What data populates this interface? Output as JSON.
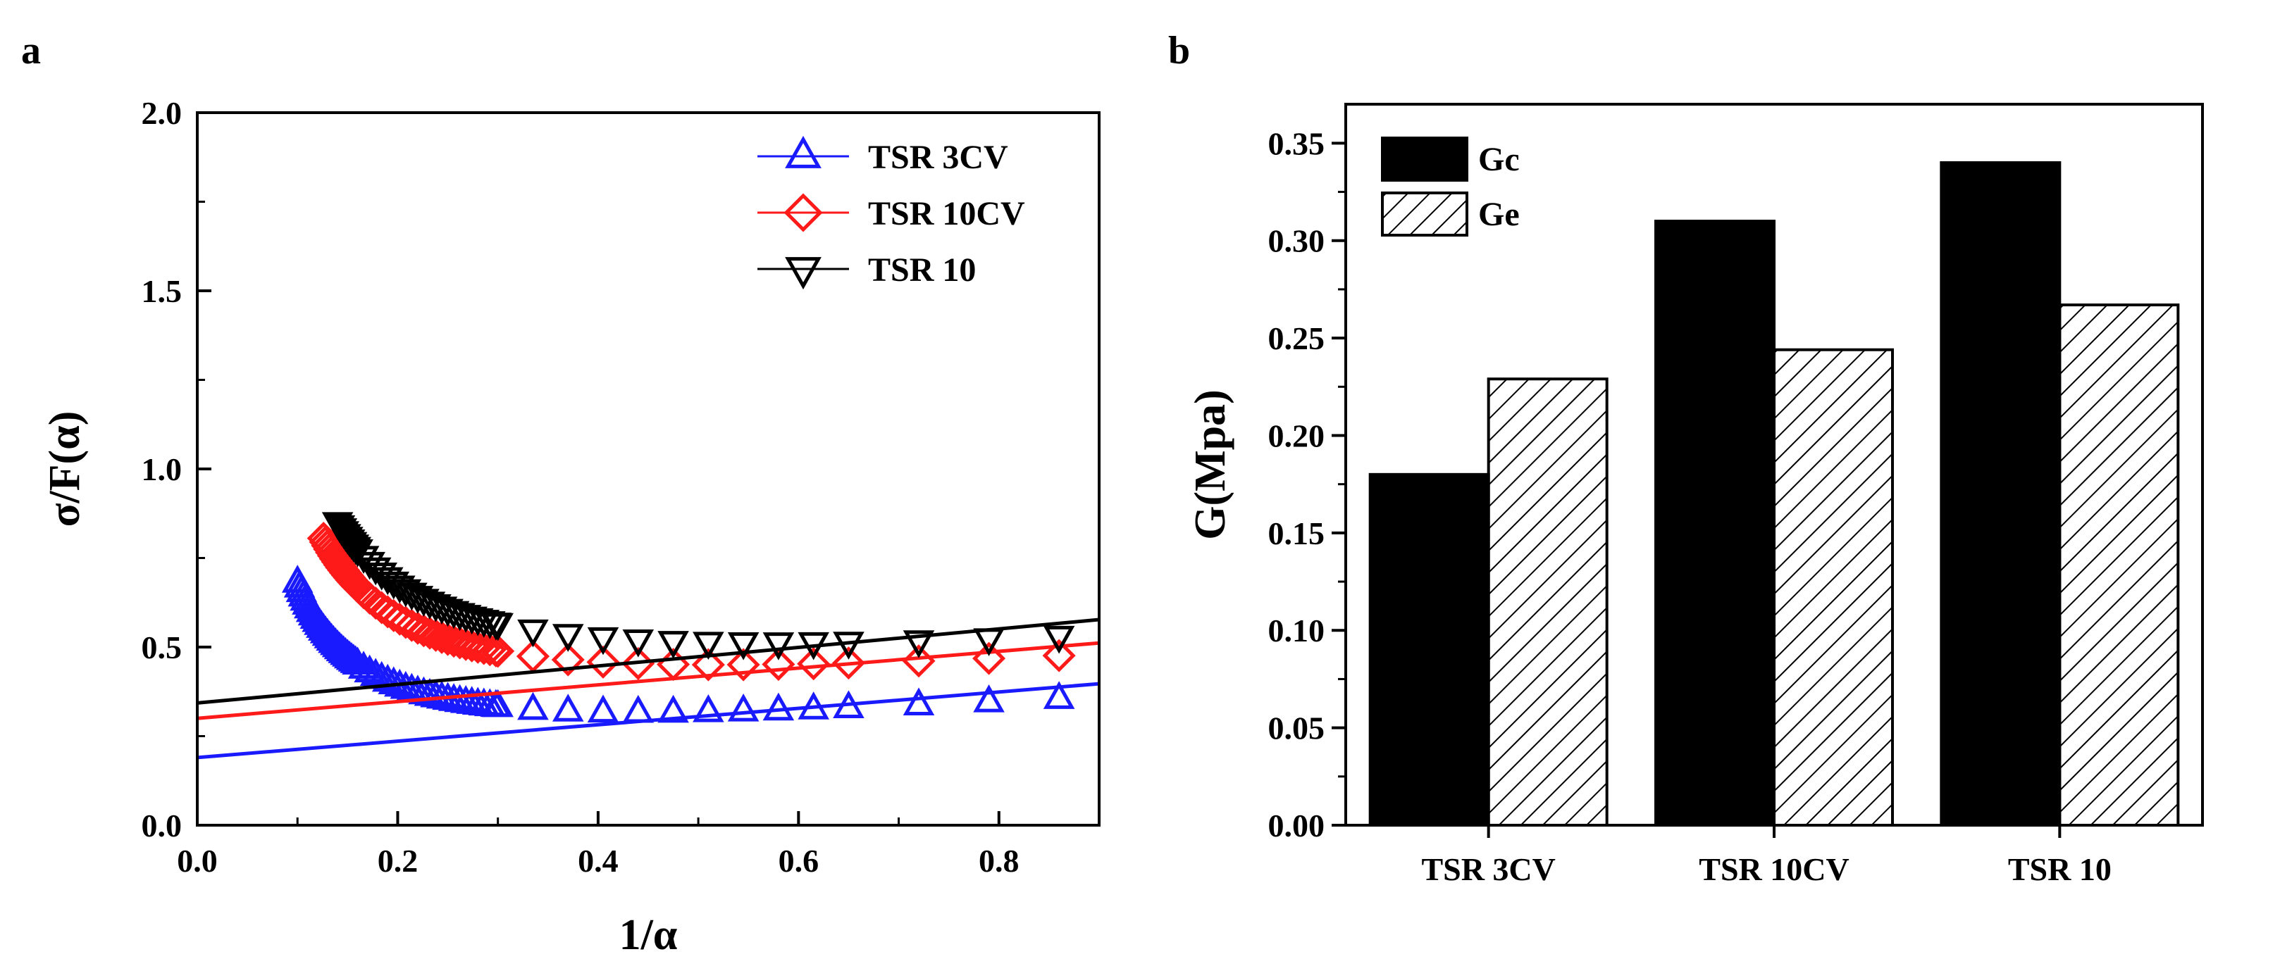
{
  "chart_data": [
    {
      "panel_label": "a",
      "type": "scatter",
      "xlabel": "1/α",
      "ylabel": "σ/F(α)",
      "xlim": [
        0,
        0.9
      ],
      "ylim": [
        0,
        2.0
      ],
      "xticks": [
        "0.0",
        "0.2",
        "0.4",
        "0.6",
        "0.8"
      ],
      "yticks": [
        "0.0",
        "0.5",
        "1.0",
        "1.5",
        "2.0"
      ],
      "legend_position": "top-right",
      "series": [
        {
          "name": "TSR 3CV",
          "color": "#1a1aff",
          "marker": "triangle-up",
          "a": 0.19,
          "b": 0.015,
          "c": 1.5,
          "fit": [
            0.19,
            0.23
          ],
          "x_min": 0.1
        },
        {
          "name": "TSR 10CV",
          "color": "#ff1a1a",
          "marker": "diamond",
          "a": 0.3,
          "b": 0.024,
          "c": 1.45,
          "fit": [
            0.3,
            0.235
          ],
          "x_min": 0.126
        },
        {
          "name": "TSR 10",
          "color": "#000000",
          "marker": "triangle-down",
          "a": 0.343,
          "b": 0.034,
          "c": 1.35,
          "fit": [
            0.343,
            0.26
          ],
          "x_min": 0.14
        }
      ]
    },
    {
      "panel_label": "b",
      "type": "bar",
      "xlabel": "",
      "ylabel": "G(Mpa)",
      "ylim": [
        0,
        0.37
      ],
      "yticks": [
        "0.00",
        "0.05",
        "0.10",
        "0.15",
        "0.20",
        "0.25",
        "0.30",
        "0.35"
      ],
      "categories": [
        "TSR 3CV",
        "TSR 10CV",
        "TSR 10"
      ],
      "legend_position": "top-left",
      "series": [
        {
          "name": "Gc",
          "fill": "solid-black",
          "values": [
            0.18,
            0.31,
            0.34
          ]
        },
        {
          "name": "Ge",
          "fill": "hatched",
          "values": [
            0.229,
            0.244,
            0.267
          ]
        }
      ]
    }
  ]
}
